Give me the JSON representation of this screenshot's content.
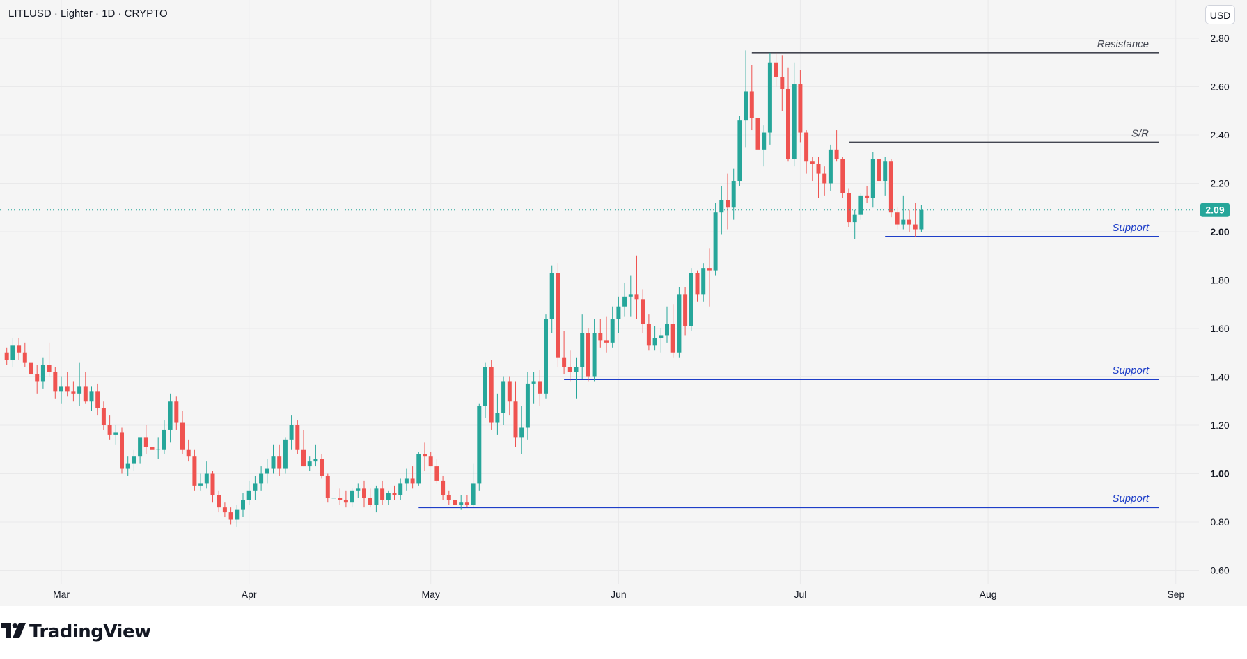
{
  "header": {
    "symbol_line": "LITLUSD · Lighter · 1D · CRYPTO"
  },
  "currency_button": {
    "label": "USD"
  },
  "branding": {
    "name": "TradingView",
    "logo_icon": "tradingview-logo-icon"
  },
  "colors": {
    "up": "#26a69a",
    "down": "#ef5350",
    "resistance_line": "#434651",
    "support_line": "#1e3ec8",
    "price_label_bg": "#26a69a",
    "plot_bg": "#f5f5f5"
  },
  "chart_data": {
    "type": "candlestick",
    "title": "LITLUSD · Lighter · 1D · CRYPTO",
    "xlabel": "",
    "ylabel": "",
    "y_axis_side": "right",
    "ylim": [
      0.55,
      2.85
    ],
    "grid": true,
    "x_tick_labels": [
      "Mar",
      "Apr",
      "May",
      "Jun",
      "Jul",
      "Aug",
      "Sep"
    ],
    "x_tick_days": [
      28,
      59,
      89,
      120,
      150,
      181,
      212
    ],
    "y_tick_labels": [
      "2.80",
      "2.60",
      "2.40",
      "2.20",
      "2.00",
      "1.80",
      "1.60",
      "1.40",
      "1.20",
      "1.00",
      "0.80",
      "0.60"
    ],
    "y_tick_values": [
      2.8,
      2.6,
      2.4,
      2.2,
      2.0,
      1.8,
      1.6,
      1.4,
      1.2,
      1.0,
      0.8,
      0.6
    ],
    "last_price": {
      "value": 2.09,
      "label": "2.09"
    },
    "levels": [
      {
        "label": "Resistance",
        "price": 2.74,
        "from_day": 142,
        "kind": "resistance"
      },
      {
        "label": "S/R",
        "price": 2.37,
        "from_day": 158,
        "kind": "resistance"
      },
      {
        "label": "Support",
        "price": 1.98,
        "from_day": 164,
        "kind": "support"
      },
      {
        "label": "Support",
        "price": 1.39,
        "from_day": 111,
        "kind": "support"
      },
      {
        "label": "Support",
        "price": 0.86,
        "from_day": 87,
        "kind": "support"
      }
    ],
    "start_day": 19,
    "candles": [
      [
        1.5,
        1.52,
        1.45,
        1.47
      ],
      [
        1.47,
        1.56,
        1.44,
        1.53
      ],
      [
        1.53,
        1.56,
        1.47,
        1.5
      ],
      [
        1.5,
        1.54,
        1.44,
        1.46
      ],
      [
        1.46,
        1.5,
        1.36,
        1.41
      ],
      [
        1.41,
        1.45,
        1.33,
        1.38
      ],
      [
        1.38,
        1.48,
        1.35,
        1.45
      ],
      [
        1.45,
        1.54,
        1.4,
        1.42
      ],
      [
        1.42,
        1.44,
        1.31,
        1.34
      ],
      [
        1.34,
        1.4,
        1.29,
        1.36
      ],
      [
        1.36,
        1.42,
        1.32,
        1.34
      ],
      [
        1.34,
        1.38,
        1.3,
        1.33
      ],
      [
        1.33,
        1.46,
        1.28,
        1.36
      ],
      [
        1.36,
        1.42,
        1.29,
        1.3
      ],
      [
        1.3,
        1.36,
        1.26,
        1.34
      ],
      [
        1.34,
        1.37,
        1.24,
        1.27
      ],
      [
        1.27,
        1.3,
        1.18,
        1.2
      ],
      [
        1.2,
        1.24,
        1.14,
        1.16
      ],
      [
        1.16,
        1.2,
        1.12,
        1.17
      ],
      [
        1.17,
        1.19,
        1.0,
        1.02
      ],
      [
        1.02,
        1.07,
        0.99,
        1.04
      ],
      [
        1.04,
        1.1,
        1.01,
        1.07
      ],
      [
        1.07,
        1.14,
        1.04,
        1.15
      ],
      [
        1.15,
        1.2,
        1.08,
        1.11
      ],
      [
        1.11,
        1.15,
        1.09,
        1.1
      ],
      [
        1.1,
        1.15,
        1.06,
        1.1
      ],
      [
        1.1,
        1.22,
        1.08,
        1.18
      ],
      [
        1.18,
        1.33,
        1.13,
        1.3
      ],
      [
        1.3,
        1.32,
        1.18,
        1.21
      ],
      [
        1.21,
        1.26,
        1.08,
        1.1
      ],
      [
        1.1,
        1.14,
        1.05,
        1.07
      ],
      [
        1.07,
        1.1,
        0.93,
        0.95
      ],
      [
        0.95,
        1.0,
        0.93,
        0.96
      ],
      [
        0.96,
        1.05,
        0.94,
        1.0
      ],
      [
        1.0,
        1.01,
        0.88,
        0.91
      ],
      [
        0.91,
        0.93,
        0.84,
        0.86
      ],
      [
        0.86,
        0.88,
        0.82,
        0.84
      ],
      [
        0.84,
        0.86,
        0.79,
        0.81
      ],
      [
        0.81,
        0.87,
        0.78,
        0.85
      ],
      [
        0.85,
        0.92,
        0.82,
        0.89
      ],
      [
        0.89,
        0.97,
        0.87,
        0.93
      ],
      [
        0.93,
        0.99,
        0.89,
        0.96
      ],
      [
        0.96,
        1.03,
        0.93,
        1.0
      ],
      [
        1.0,
        1.06,
        0.96,
        1.02
      ],
      [
        1.02,
        1.12,
        1.0,
        1.07
      ],
      [
        1.07,
        1.12,
        0.99,
        1.02
      ],
      [
        1.02,
        1.15,
        1.0,
        1.14
      ],
      [
        1.14,
        1.24,
        1.1,
        1.2
      ],
      [
        1.2,
        1.22,
        1.08,
        1.1
      ],
      [
        1.1,
        1.18,
        1.03,
        1.03
      ],
      [
        1.03,
        1.07,
        1.01,
        1.05
      ],
      [
        1.05,
        1.12,
        1.03,
        1.06
      ],
      [
        1.06,
        1.08,
        0.98,
        0.99
      ],
      [
        0.99,
        1.0,
        0.88,
        0.9
      ],
      [
        0.9,
        0.92,
        0.88,
        0.9
      ],
      [
        0.9,
        0.94,
        0.87,
        0.89
      ],
      [
        0.89,
        0.93,
        0.86,
        0.88
      ],
      [
        0.88,
        0.94,
        0.86,
        0.93
      ],
      [
        0.93,
        0.96,
        0.9,
        0.94
      ],
      [
        0.94,
        0.97,
        0.86,
        0.9
      ],
      [
        0.9,
        0.94,
        0.86,
        0.87
      ],
      [
        0.87,
        0.95,
        0.84,
        0.94
      ],
      [
        0.94,
        0.97,
        0.87,
        0.89
      ],
      [
        0.89,
        0.93,
        0.87,
        0.92
      ],
      [
        0.92,
        0.95,
        0.89,
        0.91
      ],
      [
        0.91,
        0.98,
        0.89,
        0.96
      ],
      [
        0.96,
        1.02,
        0.93,
        0.98
      ],
      [
        0.98,
        1.03,
        0.94,
        0.96
      ],
      [
        0.96,
        1.09,
        0.95,
        1.08
      ],
      [
        1.08,
        1.13,
        1.01,
        1.07
      ],
      [
        1.07,
        1.09,
        1.03,
        1.03
      ],
      [
        1.03,
        1.06,
        0.96,
        0.97
      ],
      [
        0.97,
        0.99,
        0.89,
        0.91
      ],
      [
        0.91,
        0.93,
        0.87,
        0.89
      ],
      [
        0.89,
        0.91,
        0.85,
        0.87
      ],
      [
        0.87,
        0.91,
        0.85,
        0.88
      ],
      [
        0.88,
        0.91,
        0.86,
        0.87
      ],
      [
        0.87,
        1.04,
        0.86,
        0.96
      ],
      [
        0.96,
        1.29,
        0.93,
        1.28
      ],
      [
        1.28,
        1.46,
        1.23,
        1.44
      ],
      [
        1.44,
        1.47,
        1.18,
        1.21
      ],
      [
        1.21,
        1.33,
        1.16,
        1.25
      ],
      [
        1.25,
        1.4,
        1.2,
        1.38
      ],
      [
        1.38,
        1.4,
        1.24,
        1.3
      ],
      [
        1.3,
        1.38,
        1.11,
        1.15
      ],
      [
        1.15,
        1.28,
        1.08,
        1.19
      ],
      [
        1.19,
        1.42,
        1.14,
        1.37
      ],
      [
        1.37,
        1.42,
        1.29,
        1.38
      ],
      [
        1.38,
        1.43,
        1.28,
        1.33
      ],
      [
        1.33,
        1.66,
        1.31,
        1.64
      ],
      [
        1.64,
        1.86,
        1.58,
        1.83
      ],
      [
        1.83,
        1.87,
        1.44,
        1.48
      ],
      [
        1.48,
        1.59,
        1.41,
        1.44
      ],
      [
        1.44,
        1.51,
        1.38,
        1.42
      ],
      [
        1.42,
        1.48,
        1.31,
        1.44
      ],
      [
        1.44,
        1.66,
        1.39,
        1.58
      ],
      [
        1.58,
        1.6,
        1.38,
        1.4
      ],
      [
        1.4,
        1.64,
        1.38,
        1.58
      ],
      [
        1.58,
        1.64,
        1.52,
        1.55
      ],
      [
        1.55,
        1.65,
        1.5,
        1.54
      ],
      [
        1.54,
        1.69,
        1.52,
        1.64
      ],
      [
        1.64,
        1.73,
        1.58,
        1.69
      ],
      [
        1.69,
        1.79,
        1.65,
        1.73
      ],
      [
        1.73,
        1.82,
        1.65,
        1.74
      ],
      [
        1.74,
        1.9,
        1.64,
        1.72
      ],
      [
        1.72,
        1.76,
        1.58,
        1.62
      ],
      [
        1.62,
        1.66,
        1.51,
        1.53
      ],
      [
        1.53,
        1.61,
        1.51,
        1.56
      ],
      [
        1.56,
        1.6,
        1.5,
        1.57
      ],
      [
        1.57,
        1.69,
        1.54,
        1.62
      ],
      [
        1.62,
        1.7,
        1.48,
        1.5
      ],
      [
        1.5,
        1.77,
        1.48,
        1.74
      ],
      [
        1.74,
        1.77,
        1.57,
        1.61
      ],
      [
        1.61,
        1.85,
        1.59,
        1.83
      ],
      [
        1.83,
        1.84,
        1.71,
        1.74
      ],
      [
        1.74,
        1.87,
        1.71,
        1.85
      ],
      [
        1.85,
        1.93,
        1.69,
        1.84
      ],
      [
        1.84,
        2.12,
        1.82,
        2.08
      ],
      [
        2.08,
        2.19,
        1.99,
        2.13
      ],
      [
        2.13,
        2.24,
        2.01,
        2.1
      ],
      [
        2.1,
        2.26,
        2.05,
        2.21
      ],
      [
        2.21,
        2.48,
        2.19,
        2.46
      ],
      [
        2.46,
        2.75,
        2.35,
        2.58
      ],
      [
        2.58,
        2.69,
        2.42,
        2.47
      ],
      [
        2.47,
        2.55,
        2.3,
        2.34
      ],
      [
        2.34,
        2.44,
        2.27,
        2.41
      ],
      [
        2.41,
        2.74,
        2.36,
        2.7
      ],
      [
        2.7,
        2.74,
        2.6,
        2.64
      ],
      [
        2.64,
        2.73,
        2.5,
        2.59
      ],
      [
        2.59,
        2.68,
        2.29,
        2.3
      ],
      [
        2.3,
        2.7,
        2.27,
        2.61
      ],
      [
        2.61,
        2.67,
        2.37,
        2.41
      ],
      [
        2.41,
        2.42,
        2.24,
        2.29
      ],
      [
        2.29,
        2.31,
        2.21,
        2.28
      ],
      [
        2.28,
        2.31,
        2.14,
        2.24
      ],
      [
        2.24,
        2.27,
        2.15,
        2.2
      ],
      [
        2.2,
        2.36,
        2.17,
        2.34
      ],
      [
        2.34,
        2.42,
        2.29,
        2.3
      ],
      [
        2.3,
        2.31,
        2.14,
        2.16
      ],
      [
        2.16,
        2.18,
        2.02,
        2.04
      ],
      [
        2.04,
        2.09,
        1.97,
        2.07
      ],
      [
        2.07,
        2.16,
        2.05,
        2.15
      ],
      [
        2.15,
        2.19,
        2.12,
        2.14
      ],
      [
        2.14,
        2.33,
        2.1,
        2.3
      ],
      [
        2.3,
        2.37,
        2.18,
        2.21
      ],
      [
        2.21,
        2.31,
        2.15,
        2.29
      ],
      [
        2.29,
        2.3,
        2.06,
        2.08
      ],
      [
        2.08,
        2.1,
        2.01,
        2.03
      ],
      [
        2.03,
        2.15,
        2.01,
        2.05
      ],
      [
        2.05,
        2.09,
        2.0,
        2.03
      ],
      [
        2.03,
        2.12,
        1.98,
        2.01
      ],
      [
        2.01,
        2.11,
        2.0,
        2.09
      ]
    ]
  }
}
